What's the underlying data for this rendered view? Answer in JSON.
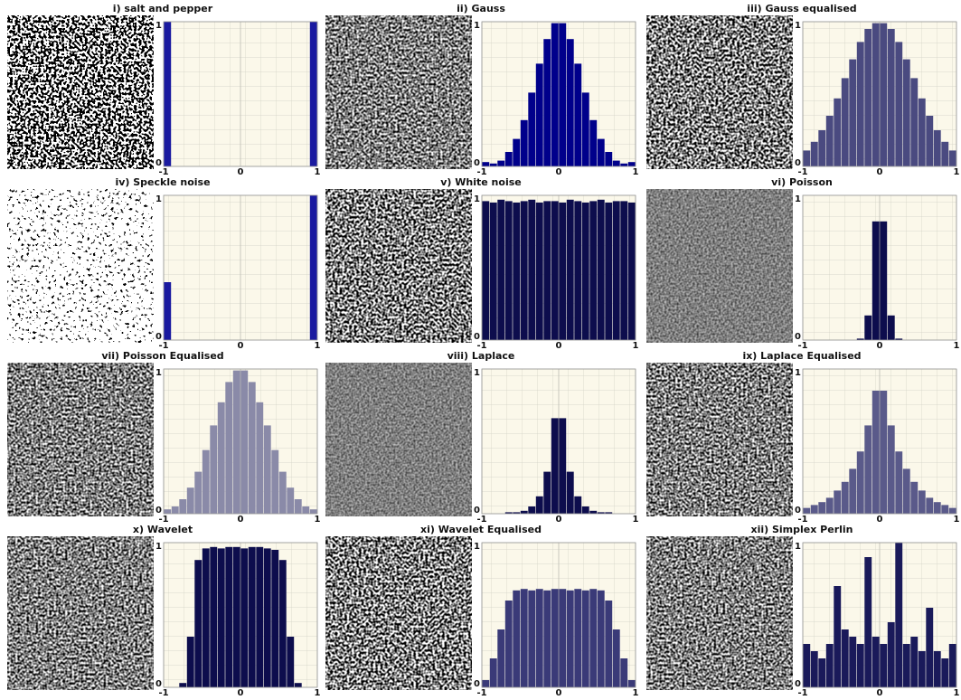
{
  "chart_data": [
    {
      "type": "histogram",
      "title": "i) salt and pepper",
      "bins": [
        -1,
        -0.9,
        -0.8,
        -0.7,
        -0.6,
        -0.5,
        -0.4,
        -0.3,
        -0.2,
        -0.1,
        0,
        0.1,
        0.2,
        0.3,
        0.4,
        0.5,
        0.6,
        0.7,
        0.8,
        0.9,
        1
      ],
      "values": [
        1,
        0,
        0,
        0,
        0,
        0,
        0,
        0,
        0,
        0,
        0,
        0,
        0,
        0,
        0,
        0,
        0,
        0,
        0,
        1
      ],
      "color": "#1a1aa0",
      "xlim": [
        -1,
        1
      ],
      "ylim": [
        0,
        1
      ],
      "xticks": [
        -1,
        0,
        1
      ],
      "yticks": [
        0,
        1
      ],
      "grid": true
    },
    {
      "type": "histogram",
      "title": "ii) Gauss",
      "bins": [
        -1,
        -0.9,
        -0.8,
        -0.7,
        -0.6,
        -0.5,
        -0.4,
        -0.3,
        -0.2,
        -0.1,
        0,
        0.1,
        0.2,
        0.3,
        0.4,
        0.5,
        0.6,
        0.7,
        0.8,
        0.9,
        1
      ],
      "values": [
        0.03,
        0.02,
        0.04,
        0.1,
        0.19,
        0.32,
        0.51,
        0.71,
        0.88,
        0.99,
        0.99,
        0.88,
        0.71,
        0.51,
        0.32,
        0.19,
        0.1,
        0.04,
        0.02,
        0.03
      ],
      "color": "#00008b",
      "xlim": [
        -1,
        1
      ],
      "ylim": [
        0,
        1
      ],
      "xticks": [
        -1,
        0,
        1
      ],
      "yticks": [
        0,
        1
      ],
      "grid": true
    },
    {
      "type": "histogram",
      "title": "iii) Gauss equalised",
      "bins": [
        -1,
        -0.9,
        -0.8,
        -0.7,
        -0.6,
        -0.5,
        -0.4,
        -0.3,
        -0.2,
        -0.1,
        0,
        0.1,
        0.2,
        0.3,
        0.4,
        0.5,
        0.6,
        0.7,
        0.8,
        0.9,
        1
      ],
      "values": [
        0.11,
        0.17,
        0.25,
        0.35,
        0.47,
        0.61,
        0.74,
        0.86,
        0.95,
        0.99,
        0.99,
        0.95,
        0.86,
        0.74,
        0.61,
        0.47,
        0.35,
        0.25,
        0.17,
        0.11
      ],
      "color": "#4a4a80",
      "xlim": [
        -1,
        1
      ],
      "ylim": [
        0,
        1
      ],
      "xticks": [
        -1,
        0,
        1
      ],
      "yticks": [
        0,
        1
      ],
      "grid": true
    },
    {
      "type": "histogram",
      "title": "iv) Speckle noise",
      "bins": [
        -1,
        -0.9,
        -0.8,
        -0.7,
        -0.6,
        -0.5,
        -0.4,
        -0.3,
        -0.2,
        -0.1,
        0,
        0.1,
        0.2,
        0.3,
        0.4,
        0.5,
        0.6,
        0.7,
        0.8,
        0.9,
        1
      ],
      "values": [
        0.4,
        0,
        0,
        0,
        0,
        0,
        0,
        0,
        0,
        0,
        0,
        0,
        0,
        0,
        0,
        0,
        0,
        0,
        0,
        1
      ],
      "color": "#1a1aa0",
      "xlim": [
        -1,
        1
      ],
      "ylim": [
        0,
        1
      ],
      "xticks": [
        -1,
        0,
        1
      ],
      "yticks": [
        0,
        1
      ],
      "grid": true
    },
    {
      "type": "histogram",
      "title": "v) White noise",
      "bins": [
        -1,
        -0.9,
        -0.8,
        -0.7,
        -0.6,
        -0.5,
        -0.4,
        -0.3,
        -0.2,
        -0.1,
        0,
        0.1,
        0.2,
        0.3,
        0.4,
        0.5,
        0.6,
        0.7,
        0.8,
        0.9,
        1
      ],
      "values": [
        0.96,
        0.95,
        0.97,
        0.96,
        0.95,
        0.96,
        0.97,
        0.95,
        0.96,
        0.96,
        0.95,
        0.97,
        0.96,
        0.95,
        0.96,
        0.97,
        0.95,
        0.96,
        0.96,
        0.95
      ],
      "color": "#0d0d4d",
      "xlim": [
        -1,
        1
      ],
      "ylim": [
        0,
        1
      ],
      "xticks": [
        -1,
        0,
        1
      ],
      "yticks": [
        0,
        1
      ],
      "grid": true
    },
    {
      "type": "histogram",
      "title": "vi) Poisson",
      "bins": [
        -1,
        -0.9,
        -0.8,
        -0.7,
        -0.6,
        -0.5,
        -0.4,
        -0.3,
        -0.2,
        -0.1,
        0,
        0.1,
        0.2,
        0.3,
        0.4,
        0.5,
        0.6,
        0.7,
        0.8,
        0.9,
        1
      ],
      "values": [
        0,
        0,
        0,
        0,
        0,
        0,
        0,
        0.01,
        0.17,
        0.82,
        0.82,
        0.17,
        0.01,
        0,
        0,
        0,
        0,
        0,
        0,
        0
      ],
      "color": "#0d0d4d",
      "xlim": [
        -1,
        1
      ],
      "ylim": [
        0,
        1
      ],
      "xticks": [
        -1,
        0,
        1
      ],
      "yticks": [
        0,
        1
      ],
      "grid": true
    },
    {
      "type": "histogram",
      "title": "vii) Poisson Equalised",
      "bins": [
        -1,
        -0.9,
        -0.8,
        -0.7,
        -0.6,
        -0.5,
        -0.4,
        -0.3,
        -0.2,
        -0.1,
        0,
        0.1,
        0.2,
        0.3,
        0.4,
        0.5,
        0.6,
        0.7,
        0.8,
        0.9,
        1
      ],
      "values": [
        0.03,
        0.05,
        0.1,
        0.18,
        0.29,
        0.44,
        0.61,
        0.77,
        0.91,
        0.99,
        0.99,
        0.91,
        0.77,
        0.61,
        0.44,
        0.29,
        0.18,
        0.1,
        0.05,
        0.03
      ],
      "color": "#8a8aa8",
      "xlim": [
        -1,
        1
      ],
      "ylim": [
        0,
        1
      ],
      "xticks": [
        -1,
        0,
        1
      ],
      "yticks": [
        0,
        1
      ],
      "grid": true
    },
    {
      "type": "histogram",
      "title": "viii) Laplace",
      "bins": [
        -1,
        -0.9,
        -0.8,
        -0.7,
        -0.6,
        -0.5,
        -0.4,
        -0.3,
        -0.2,
        -0.1,
        0,
        0.1,
        0.2,
        0.3,
        0.4,
        0.5,
        0.6,
        0.7,
        0.8,
        0.9,
        1
      ],
      "values": [
        0,
        0,
        0,
        0.01,
        0.01,
        0.02,
        0.05,
        0.12,
        0.29,
        0.66,
        0.66,
        0.29,
        0.12,
        0.05,
        0.02,
        0.01,
        0.01,
        0,
        0,
        0
      ],
      "color": "#0d0d4d",
      "xlim": [
        -1,
        1
      ],
      "ylim": [
        0,
        1
      ],
      "xticks": [
        -1,
        0,
        1
      ],
      "yticks": [
        0,
        1
      ],
      "grid": true
    },
    {
      "type": "histogram",
      "title": "ix) Laplace Equalised",
      "bins": [
        -1,
        -0.9,
        -0.8,
        -0.7,
        -0.6,
        -0.5,
        -0.4,
        -0.3,
        -0.2,
        -0.1,
        0,
        0.1,
        0.2,
        0.3,
        0.4,
        0.5,
        0.6,
        0.7,
        0.8,
        0.9,
        1
      ],
      "values": [
        0.04,
        0.06,
        0.08,
        0.11,
        0.16,
        0.22,
        0.31,
        0.43,
        0.61,
        0.85,
        0.85,
        0.61,
        0.43,
        0.31,
        0.22,
        0.16,
        0.11,
        0.08,
        0.06,
        0.04
      ],
      "color": "#5a5a8a",
      "xlim": [
        -1,
        1
      ],
      "ylim": [
        0,
        1
      ],
      "xticks": [
        -1,
        0,
        1
      ],
      "yticks": [
        0,
        1
      ],
      "grid": true
    },
    {
      "type": "histogram",
      "title": "x) Wavelet",
      "bins": [
        -1,
        -0.9,
        -0.8,
        -0.7,
        -0.6,
        -0.5,
        -0.4,
        -0.3,
        -0.2,
        -0.1,
        0,
        0.1,
        0.2,
        0.3,
        0.4,
        0.5,
        0.6,
        0.7,
        0.8,
        0.9,
        1
      ],
      "values": [
        0,
        0,
        0.03,
        0.35,
        0.88,
        0.96,
        0.97,
        0.96,
        0.97,
        0.97,
        0.96,
        0.97,
        0.97,
        0.96,
        0.95,
        0.88,
        0.35,
        0.03,
        0,
        0
      ],
      "color": "#0d0d4d",
      "xlim": [
        -1,
        1
      ],
      "ylim": [
        0,
        1
      ],
      "xticks": [
        -1,
        0,
        1
      ],
      "yticks": [
        0,
        1
      ],
      "grid": true
    },
    {
      "type": "histogram",
      "title": "xi) Wavelet Equalised",
      "bins": [
        -1,
        -0.9,
        -0.8,
        -0.7,
        -0.6,
        -0.5,
        -0.4,
        -0.3,
        -0.2,
        -0.1,
        0,
        0.1,
        0.2,
        0.3,
        0.4,
        0.5,
        0.6,
        0.7,
        0.8,
        0.9,
        1
      ],
      "values": [
        0.05,
        0.2,
        0.4,
        0.6,
        0.67,
        0.68,
        0.67,
        0.68,
        0.67,
        0.68,
        0.68,
        0.67,
        0.68,
        0.67,
        0.68,
        0.67,
        0.6,
        0.4,
        0.2,
        0.05
      ],
      "color": "#3a3a78",
      "xlim": [
        -1,
        1
      ],
      "ylim": [
        0,
        1
      ],
      "xticks": [
        -1,
        0,
        1
      ],
      "yticks": [
        0,
        1
      ],
      "grid": true
    },
    {
      "type": "histogram",
      "title": "xii) Simplex Perlin",
      "bins": [
        -1,
        -0.9,
        -0.8,
        -0.7,
        -0.6,
        -0.5,
        -0.4,
        -0.3,
        -0.2,
        -0.1,
        0,
        0.1,
        0.2,
        0.3,
        0.4,
        0.5,
        0.6,
        0.7,
        0.8,
        0.9,
        1
      ],
      "values": [
        0.3,
        0.25,
        0.2,
        0.3,
        0.7,
        0.4,
        0.35,
        0.3,
        0.9,
        0.35,
        0.3,
        0.45,
        1,
        0.3,
        0.35,
        0.25,
        0.55,
        0.25,
        0.2,
        0.3
      ],
      "color": "#1a1a5a",
      "xlim": [
        -1,
        1
      ],
      "ylim": [
        0,
        1
      ],
      "xticks": [
        -1,
        0,
        1
      ],
      "yticks": [
        0,
        1
      ],
      "grid": true
    }
  ]
}
